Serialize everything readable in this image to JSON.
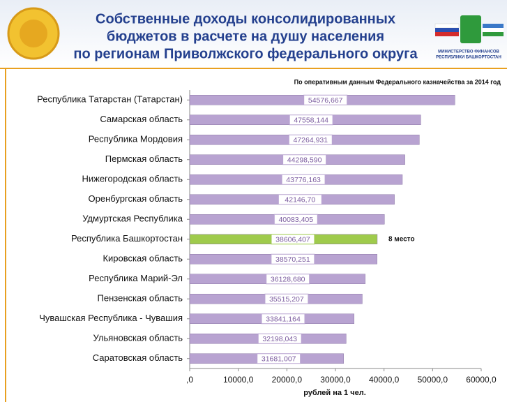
{
  "header": {
    "ministry": [
      "МИНИСТЕРСТВО ФИНАНСОВ",
      "РЕСПУБЛИКИ БАШКОРТОСТАН"
    ]
  },
  "chart_data": {
    "type": "barh",
    "title": [
      "Собственные доходы консолидированных",
      "бюджетов в расчете на душу населения",
      "по регионам Приволжского федерального округа"
    ],
    "subtitle": "По оперативным данным Федерального казначейства за 2014 год",
    "xlabel": "рублей на 1 чел.",
    "categories": [
      "Республика Татарстан (Татарстан)",
      "Самарская область",
      "Республика Мордовия",
      "Пермская область",
      "Нижегородская область",
      "Оренбургская  область",
      "Удмуртская Республика",
      "Республика Башкортостан",
      "Кировская область",
      "Республика Марий-Эл",
      "Пензенская область",
      "Чувашская Республика - Чувашия",
      "Ульяновская область",
      "Саратовская область"
    ],
    "values": [
      54576.667,
      47558.144,
      47264.931,
      44298.59,
      43776.163,
      42146.7,
      40083.405,
      38606.407,
      38570.251,
      36128.68,
      35515.207,
      33841.164,
      32198.043,
      31681.007
    ],
    "value_labels": [
      "54576,667",
      "47558,144",
      "47264,931",
      "44298,590",
      "43776,163",
      "42146,70",
      "40083,405",
      "38606,407",
      "38570,251",
      "36128,680",
      "35515,207",
      "33841,164",
      "32198,043",
      "31681,007"
    ],
    "colors": [
      "#b8a3d1",
      "#b8a3d1",
      "#b8a3d1",
      "#b8a3d1",
      "#b8a3d1",
      "#b8a3d1",
      "#b8a3d1",
      "#9fcb4c",
      "#b8a3d1",
      "#b8a3d1",
      "#b8a3d1",
      "#b8a3d1",
      "#b8a3d1",
      "#b8a3d1"
    ],
    "annotations": [
      {
        "index": 7,
        "text": "8 место"
      }
    ],
    "xlim": [
      0,
      60000
    ],
    "xticks": [
      {
        "value": 0,
        "label": ",0"
      },
      {
        "value": 10000,
        "label": "10000,0"
      },
      {
        "value": 20000,
        "label": "20000,0"
      },
      {
        "value": 30000,
        "label": "30000,0"
      },
      {
        "value": 40000,
        "label": "40000,0"
      },
      {
        "value": 50000,
        "label": "50000,0"
      },
      {
        "value": 60000,
        "label": "60000,0"
      }
    ]
  }
}
